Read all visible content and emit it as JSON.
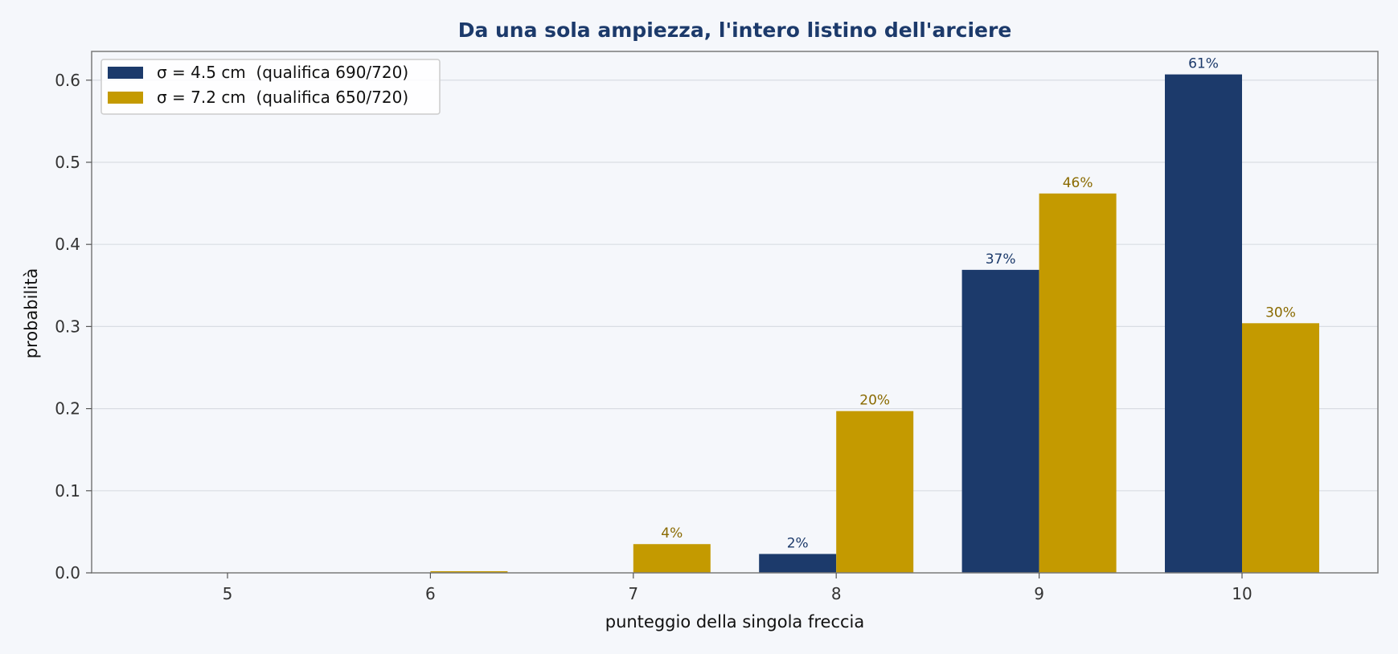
{
  "chart_data": {
    "type": "bar",
    "title": "Da una sola ampiezza, l'intero listino dell'arciere",
    "xlabel": "punteggio della singola freccia",
    "ylabel": "probabilità",
    "categories": [
      "5",
      "6",
      "7",
      "8",
      "9",
      "10"
    ],
    "ylim": [
      0,
      0.635
    ],
    "yticks": [
      "0.0",
      "0.1",
      "0.2",
      "0.3",
      "0.4",
      "0.5",
      "0.6"
    ],
    "grid": "horizontal",
    "legend_position": "top-left",
    "series": [
      {
        "name": "σ = 4.5 cm  (qualifica 690/720)",
        "color": "#1c3a6b",
        "label_color": "#1c3a6b",
        "values": [
          0.0,
          0.0,
          0.0,
          0.023,
          0.369,
          0.607
        ],
        "labels": [
          "",
          "",
          "",
          "2%",
          "37%",
          "61%"
        ]
      },
      {
        "name": "σ = 7.2 cm  (qualifica 650/720)",
        "color": "#c49a00",
        "label_color": "#8a6a00",
        "values": [
          0.0,
          0.002,
          0.035,
          0.197,
          0.462,
          0.304
        ],
        "labels": [
          "",
          "",
          "4%",
          "20%",
          "46%",
          "30%"
        ]
      }
    ]
  }
}
